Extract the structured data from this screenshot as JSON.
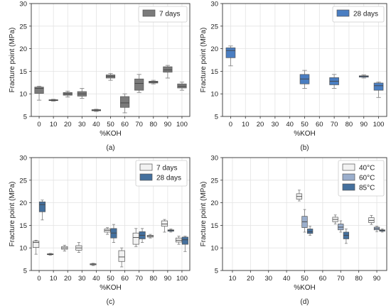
{
  "colors": {
    "grey": "#7b7b7b",
    "blue": "#4a7ec2",
    "light": "#f2f2f2",
    "mid": "#9aaecc",
    "dark": "#44709e",
    "grid": "#e3e3e3",
    "whisker": "#888888"
  },
  "chart_data": [
    {
      "type": "box",
      "panel": "(a)",
      "xlabel": "%KOH",
      "ylabel": "Fracture point (MPa)",
      "ylim": [
        5,
        30
      ],
      "yticks": [
        5,
        10,
        15,
        20,
        25,
        30
      ],
      "categories": [
        "0",
        "10",
        "20",
        "30",
        "40",
        "50",
        "60",
        "70",
        "80",
        "90",
        "100"
      ],
      "legend_position": "upper-right",
      "series": [
        {
          "name": "7 days",
          "color_key": "grey",
          "boxes": [
            {
              "x": "0",
              "min": 8.6,
              "q1": 10.1,
              "median": 11.2,
              "q3": 11.5,
              "max": 11.7
            },
            {
              "x": "10",
              "min": 8.4,
              "q1": 8.5,
              "median": 8.6,
              "q3": 8.7,
              "max": 8.8
            },
            {
              "x": "20",
              "min": 9.3,
              "q1": 9.7,
              "median": 10.0,
              "q3": 10.3,
              "max": 10.6
            },
            {
              "x": "30",
              "min": 9.0,
              "q1": 9.5,
              "median": 10.0,
              "q3": 10.5,
              "max": 11.2
            },
            {
              "x": "40",
              "min": 6.1,
              "q1": 6.25,
              "median": 6.4,
              "q3": 6.5,
              "max": 6.6
            },
            {
              "x": "50",
              "min": 13.0,
              "q1": 13.5,
              "median": 13.9,
              "q3": 14.2,
              "max": 14.5
            },
            {
              "x": "60",
              "min": 5.8,
              "q1": 7.0,
              "median": 8.0,
              "q3": 9.4,
              "max": 10.0
            },
            {
              "x": "70",
              "min": 10.3,
              "q1": 10.8,
              "median": 12.3,
              "q3": 13.3,
              "max": 14.3
            },
            {
              "x": "80",
              "min": 12.2,
              "q1": 12.4,
              "median": 12.6,
              "q3": 12.8,
              "max": 13.0
            },
            {
              "x": "90",
              "min": 13.5,
              "q1": 14.8,
              "median": 15.3,
              "q3": 16.0,
              "max": 16.3
            },
            {
              "x": "100",
              "min": 10.8,
              "q1": 11.3,
              "median": 11.7,
              "q3": 12.2,
              "max": 12.6
            }
          ]
        }
      ]
    },
    {
      "type": "box",
      "panel": "(b)",
      "xlabel": "%KOH",
      "ylabel": "Fracture point (MPa)",
      "ylim": [
        5,
        30
      ],
      "yticks": [
        5,
        10,
        15,
        20,
        25,
        30
      ],
      "categories": [
        "0",
        "10",
        "20",
        "30",
        "40",
        "50",
        "60",
        "70",
        "80",
        "90",
        "100"
      ],
      "legend_position": "upper-right",
      "series": [
        {
          "name": "28 days",
          "color_key": "blue",
          "boxes": [
            {
              "x": "0",
              "min": 16.2,
              "q1": 18.0,
              "median": 19.6,
              "q3": 20.2,
              "max": 20.6
            },
            {
              "x": "50",
              "min": 11.2,
              "q1": 12.2,
              "median": 13.3,
              "q3": 14.3,
              "max": 15.2
            },
            {
              "x": "70",
              "min": 11.2,
              "q1": 12.0,
              "median": 12.8,
              "q3": 13.6,
              "max": 14.3
            },
            {
              "x": "90",
              "min": 13.5,
              "q1": 13.7,
              "median": 13.9,
              "q3": 14.0,
              "max": 14.2
            },
            {
              "x": "100",
              "min": 9.2,
              "q1": 10.8,
              "median": 11.8,
              "q3": 12.4,
              "max": 12.6
            }
          ]
        }
      ]
    },
    {
      "type": "box",
      "panel": "(c)",
      "xlabel": "%KOH",
      "ylabel": "Fracture point (MPa)",
      "ylim": [
        5,
        30
      ],
      "yticks": [
        5,
        10,
        15,
        20,
        25,
        30
      ],
      "categories": [
        "0",
        "10",
        "20",
        "30",
        "40",
        "50",
        "60",
        "70",
        "80",
        "90",
        "100"
      ],
      "legend_position": "upper-right",
      "series": [
        {
          "name": "7 days",
          "color_key": "light",
          "offset": -0.22,
          "boxes": [
            {
              "x": "0",
              "min": 8.6,
              "q1": 10.1,
              "median": 11.2,
              "q3": 11.5,
              "max": 11.7
            },
            {
              "x": "10",
              "min": 8.4,
              "q1": 8.5,
              "median": 8.6,
              "q3": 8.7,
              "max": 8.8
            },
            {
              "x": "20",
              "min": 9.3,
              "q1": 9.7,
              "median": 10.0,
              "q3": 10.3,
              "max": 10.6
            },
            {
              "x": "30",
              "min": 9.0,
              "q1": 9.5,
              "median": 10.0,
              "q3": 10.5,
              "max": 11.2
            },
            {
              "x": "40",
              "min": 6.1,
              "q1": 6.25,
              "median": 6.4,
              "q3": 6.5,
              "max": 6.6
            },
            {
              "x": "50",
              "min": 13.0,
              "q1": 13.5,
              "median": 13.9,
              "q3": 14.2,
              "max": 14.5
            },
            {
              "x": "60",
              "min": 5.8,
              "q1": 7.0,
              "median": 8.0,
              "q3": 9.4,
              "max": 10.0
            },
            {
              "x": "70",
              "min": 10.3,
              "q1": 10.8,
              "median": 12.3,
              "q3": 13.3,
              "max": 14.3
            },
            {
              "x": "80",
              "min": 12.2,
              "q1": 12.4,
              "median": 12.6,
              "q3": 12.8,
              "max": 13.0
            },
            {
              "x": "90",
              "min": 13.5,
              "q1": 14.8,
              "median": 15.3,
              "q3": 16.0,
              "max": 16.3
            },
            {
              "x": "100",
              "min": 10.8,
              "q1": 11.3,
              "median": 11.7,
              "q3": 12.2,
              "max": 12.6
            }
          ]
        },
        {
          "name": "28 days",
          "color_key": "dark",
          "offset": 0.22,
          "boxes": [
            {
              "x": "0",
              "min": 16.2,
              "q1": 18.0,
              "median": 19.6,
              "q3": 20.2,
              "max": 20.6
            },
            {
              "x": "50",
              "min": 11.2,
              "q1": 12.2,
              "median": 13.3,
              "q3": 14.3,
              "max": 15.2
            },
            {
              "x": "70",
              "min": 11.2,
              "q1": 12.0,
              "median": 12.8,
              "q3": 13.6,
              "max": 14.3
            },
            {
              "x": "90",
              "min": 13.5,
              "q1": 13.7,
              "median": 13.9,
              "q3": 14.0,
              "max": 14.2
            },
            {
              "x": "100",
              "min": 9.2,
              "q1": 10.8,
              "median": 11.8,
              "q3": 12.4,
              "max": 12.6
            }
          ]
        }
      ]
    },
    {
      "type": "box",
      "panel": "(d)",
      "xlabel": "%KOH",
      "ylabel": "Fracture point (MPa)",
      "ylim": [
        5,
        30
      ],
      "yticks": [
        5,
        10,
        15,
        20,
        25,
        30
      ],
      "categories": [
        "10",
        "20",
        "30",
        "40",
        "50",
        "60",
        "70",
        "80",
        "90"
      ],
      "legend_position": "upper-right",
      "series": [
        {
          "name": "40°C",
          "color_key": "light",
          "offset": -0.3,
          "boxes": [
            {
              "x": "50",
              "min": 20.4,
              "q1": 20.8,
              "median": 21.4,
              "q3": 22.0,
              "max": 22.8
            },
            {
              "x": "70",
              "min": 15.3,
              "q1": 15.8,
              "median": 16.3,
              "q3": 16.8,
              "max": 17.3
            },
            {
              "x": "90",
              "min": 15.2,
              "q1": 15.6,
              "median": 16.1,
              "q3": 16.7,
              "max": 17.2
            }
          ]
        },
        {
          "name": "60°C",
          "color_key": "mid",
          "offset": 0.0,
          "boxes": [
            {
              "x": "50",
              "min": 13.5,
              "q1": 14.5,
              "median": 15.8,
              "q3": 17.0,
              "max": 18.5
            },
            {
              "x": "70",
              "min": 13.5,
              "q1": 14.0,
              "median": 14.6,
              "q3": 15.3,
              "max": 16.0
            },
            {
              "x": "90",
              "min": 13.6,
              "q1": 14.0,
              "median": 14.3,
              "q3": 14.6,
              "max": 14.8
            }
          ]
        },
        {
          "name": "85°C",
          "color_key": "dark",
          "offset": 0.3,
          "boxes": [
            {
              "x": "50",
              "min": 12.8,
              "q1": 13.2,
              "median": 13.6,
              "q3": 14.2,
              "max": 14.8
            },
            {
              "x": "70",
              "min": 11.0,
              "q1": 12.0,
              "median": 12.8,
              "q3": 13.5,
              "max": 14.2
            },
            {
              "x": "90",
              "min": 13.5,
              "q1": 13.7,
              "median": 13.9,
              "q3": 14.0,
              "max": 14.2
            }
          ]
        }
      ]
    }
  ]
}
